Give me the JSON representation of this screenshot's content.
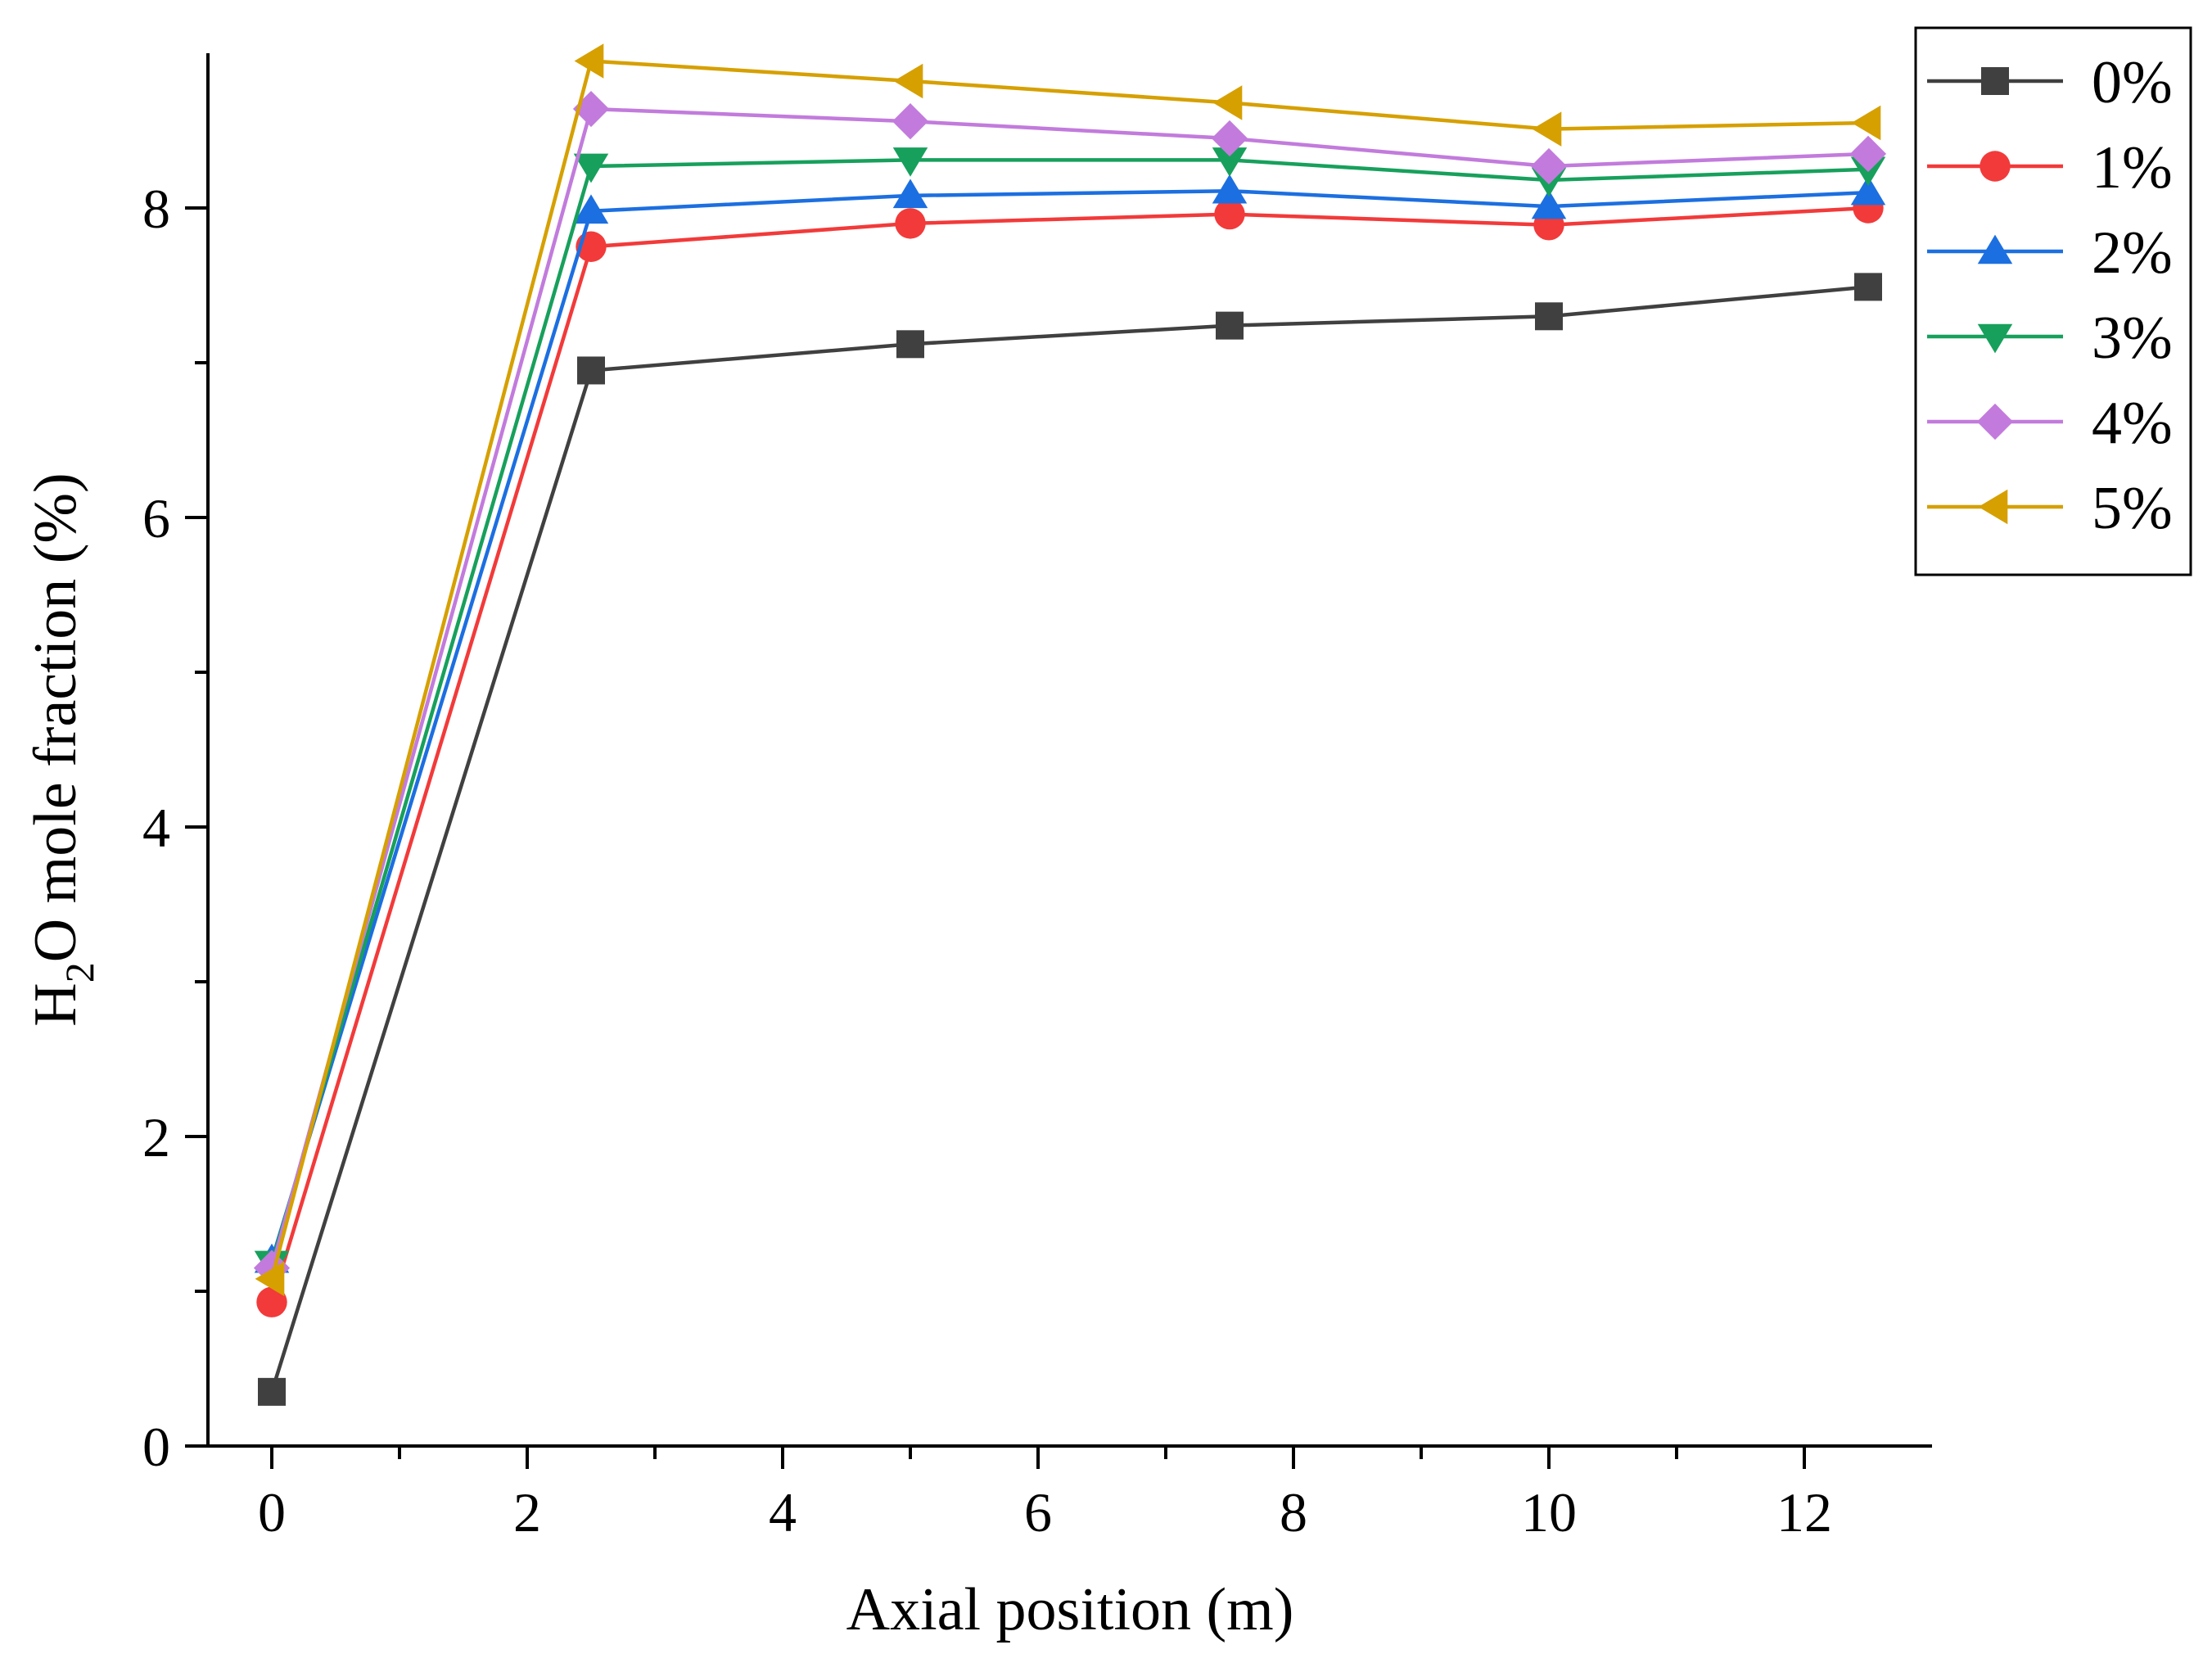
{
  "chart_data": {
    "type": "line",
    "title": "",
    "xlabel": "Axial position (m)",
    "ylabel": {
      "prefix": "H",
      "subscript": "2",
      "suffix": "O mole fraction (%)"
    },
    "xlim": [
      -0.5,
      13
    ],
    "ylim": [
      0,
      9
    ],
    "xticks": [
      0,
      2,
      4,
      6,
      8,
      10,
      12
    ],
    "xtick_labels": [
      "0",
      "2",
      "4",
      "6",
      "8",
      "10",
      "12"
    ],
    "yticks": [
      0,
      2,
      4,
      6,
      8
    ],
    "ytick_labels": [
      "0",
      "2",
      "4",
      "6",
      "8"
    ],
    "x": [
      0,
      2.5,
      5,
      7.5,
      10,
      12.5
    ],
    "grid": false,
    "legend_position": "top-right",
    "series": [
      {
        "name": "0%",
        "color": "#404040",
        "marker": "square",
        "values": [
          0.35,
          6.95,
          7.12,
          7.24,
          7.3,
          7.49
        ]
      },
      {
        "name": "1%",
        "color": "#f23a3a",
        "marker": "circle",
        "values": [
          0.93,
          7.75,
          7.9,
          7.96,
          7.89,
          8.0
        ]
      },
      {
        "name": "2%",
        "color": "#1c6fe0",
        "marker": "triangle-up",
        "values": [
          1.2,
          7.98,
          8.08,
          8.11,
          8.01,
          8.1
        ]
      },
      {
        "name": "3%",
        "color": "#17a05c",
        "marker": "triangle-down",
        "values": [
          1.18,
          8.27,
          8.31,
          8.31,
          8.18,
          8.25
        ]
      },
      {
        "name": "4%",
        "color": "#c27bdc",
        "marker": "diamond",
        "values": [
          1.15,
          8.64,
          8.56,
          8.45,
          8.27,
          8.35
        ]
      },
      {
        "name": "5%",
        "color": "#d6a000",
        "marker": "triangle-left",
        "values": [
          1.08,
          8.95,
          8.82,
          8.68,
          8.51,
          8.55
        ]
      }
    ]
  }
}
